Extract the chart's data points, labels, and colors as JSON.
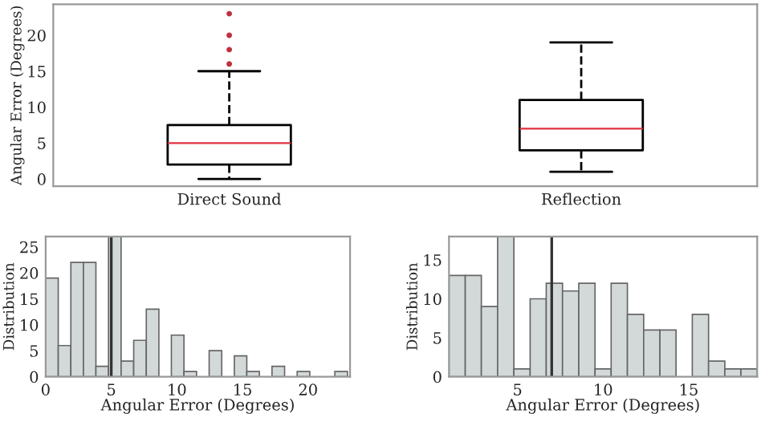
{
  "chart_data": [
    {
      "type": "box",
      "ylabel": "Angular Error (Degrees)",
      "categories": [
        "Direct Sound",
        "Reflection"
      ],
      "ylim": [
        -1,
        24.3
      ],
      "yticks": [
        0,
        5,
        10,
        15,
        20
      ],
      "grid": false,
      "color": "#000000",
      "boxes": [
        {
          "low": 0,
          "q1": 2,
          "median": 5,
          "q3": 7.5,
          "high": 15,
          "outliers": [
            16,
            18,
            20,
            23
          ]
        },
        {
          "low": 1,
          "q1": 4,
          "median": 7,
          "q3": 11,
          "high": 19
        }
      ]
    },
    {
      "type": "histogram",
      "xlabel": "Angular Error (Degrees)",
      "ylabel": "Distribution",
      "color": "#d3d9d9",
      "grid": false,
      "bins": [
        0,
        0.96,
        1.92,
        2.88,
        3.83,
        4.79,
        5.75,
        6.71,
        7.67,
        8.63,
        9.58,
        10.54,
        11.5,
        12.46,
        13.42,
        14.38,
        15.33,
        16.29,
        17.25,
        18.21,
        19.17,
        20.13,
        21.08,
        22.04,
        23
      ],
      "values": [
        19,
        6,
        22,
        22,
        2,
        27,
        3,
        7,
        13,
        0,
        8,
        1,
        0,
        5,
        0,
        4,
        1,
        0,
        2,
        0,
        1,
        0,
        0,
        1
      ],
      "xlim": [
        0,
        23.2
      ],
      "xticks": [
        0,
        5,
        10,
        15,
        20
      ],
      "ylim": [
        0,
        27
      ],
      "yticks": [
        0,
        5,
        10,
        15,
        20,
        25
      ],
      "ref_lines": [
        {
          "axis": "x",
          "value": 5,
          "color": "#333333"
        }
      ]
    },
    {
      "type": "histogram",
      "xlabel": "Angular Error (Degrees)",
      "ylabel": "Distribution",
      "color": "#d3d9d9",
      "grid": false,
      "bins": [
        1,
        1.95,
        2.89,
        3.84,
        4.79,
        5.74,
        6.68,
        7.63,
        8.58,
        9.53,
        10.47,
        11.42,
        12.37,
        13.32,
        14.26,
        15.21,
        16.16,
        17.11,
        18.05,
        19
      ],
      "values": [
        13,
        13,
        9,
        18,
        1,
        10,
        12,
        11,
        12,
        1,
        12,
        8,
        6,
        6,
        0,
        8,
        2,
        1,
        1
      ],
      "xlim": [
        1,
        19
      ],
      "xticks": [
        5,
        10,
        15
      ],
      "ylim": [
        0,
        18
      ],
      "yticks": [
        0,
        5,
        10,
        15
      ],
      "ref_lines": [
        {
          "axis": "x",
          "value": 7,
          "color": "#333333"
        }
      ]
    }
  ]
}
